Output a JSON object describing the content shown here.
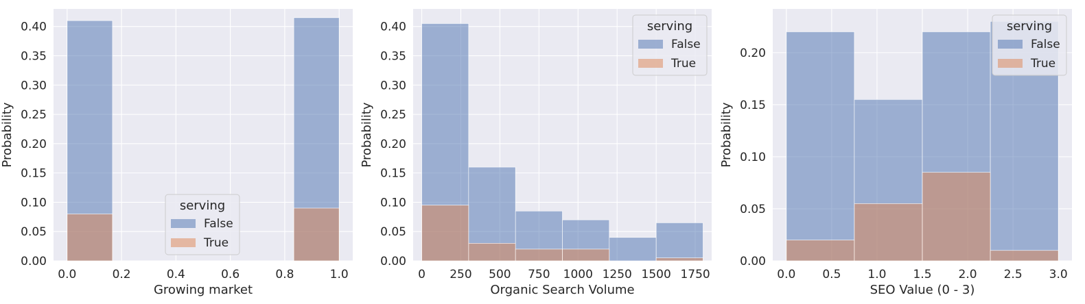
{
  "colors": {
    "panel_bg": "#EAEAF2",
    "grid": "#FFFFFF",
    "text": "#262626",
    "false_series": "#4C72B0",
    "true_series": "#DD8452",
    "legend_bg": "#EAEAF2",
    "legend_edge": "#CCCCCC"
  },
  "chart_data": [
    {
      "type": "bar",
      "xlabel": "Growing market",
      "ylabel": "Probability",
      "xlim": [
        -0.05,
        1.05
      ],
      "ylim": [
        0,
        0.43
      ],
      "xticks": [
        0.0,
        0.2,
        0.4,
        0.6,
        0.8,
        1.0
      ],
      "xtick_labels": [
        "0.0",
        "0.2",
        "0.4",
        "0.6",
        "0.8",
        "1.0"
      ],
      "yticks": [
        0.0,
        0.05,
        0.1,
        0.15,
        0.2,
        0.25,
        0.3,
        0.35,
        0.4
      ],
      "ytick_labels": [
        "0.00",
        "0.05",
        "0.10",
        "0.15",
        "0.20",
        "0.25",
        "0.30",
        "0.35",
        "0.40"
      ],
      "grid": true,
      "legend": {
        "title": "serving",
        "entries": [
          "False",
          "True"
        ],
        "placement": "lower center"
      },
      "bin_edges": [
        0.0,
        0.1667,
        0.3333,
        0.5,
        0.6667,
        0.8333,
        1.0
      ],
      "series": [
        {
          "name": "False",
          "values": [
            0.41,
            0,
            0,
            0,
            0,
            0.415
          ]
        },
        {
          "name": "True",
          "values": [
            0.08,
            0,
            0,
            0,
            0,
            0.09
          ]
        }
      ]
    },
    {
      "type": "bar",
      "xlabel": "Organic Search Volume",
      "ylabel": "Probability",
      "xlim": [
        -55,
        1855
      ],
      "ylim": [
        0,
        0.43
      ],
      "xticks": [
        0,
        250,
        500,
        750,
        1000,
        1250,
        1500,
        1750
      ],
      "xtick_labels": [
        "0",
        "250",
        "500",
        "750",
        "1000",
        "1250",
        "1500",
        "1750"
      ],
      "yticks": [
        0.0,
        0.05,
        0.1,
        0.15,
        0.2,
        0.25,
        0.3,
        0.35,
        0.4
      ],
      "ytick_labels": [
        "0.00",
        "0.05",
        "0.10",
        "0.15",
        "0.20",
        "0.25",
        "0.30",
        "0.35",
        "0.40"
      ],
      "grid": true,
      "legend": {
        "title": "serving",
        "entries": [
          "False",
          "True"
        ],
        "placement": "upper right"
      },
      "bin_edges": [
        0,
        300,
        600,
        900,
        1200,
        1500,
        1800
      ],
      "series": [
        {
          "name": "False",
          "values": [
            0.405,
            0.16,
            0.085,
            0.07,
            0.04,
            0.065
          ]
        },
        {
          "name": "True",
          "values": [
            0.095,
            0.03,
            0.02,
            0.02,
            0,
            0.005
          ]
        }
      ]
    },
    {
      "type": "bar",
      "xlabel": "SEO Value (0 - 3)",
      "ylabel": "Probability",
      "xlim": [
        -0.15,
        3.15
      ],
      "ylim": [
        0,
        0.242
      ],
      "xticks": [
        0.0,
        0.5,
        1.0,
        1.5,
        2.0,
        2.5,
        3.0
      ],
      "xtick_labels": [
        "0.0",
        "0.5",
        "1.0",
        "1.5",
        "2.0",
        "2.5",
        "3.0"
      ],
      "yticks": [
        0.0,
        0.05,
        0.1,
        0.15,
        0.2
      ],
      "ytick_labels": [
        "0.00",
        "0.05",
        "0.10",
        "0.15",
        "0.20"
      ],
      "grid": true,
      "legend": {
        "title": "serving",
        "entries": [
          "False",
          "True"
        ],
        "placement": "upper right"
      },
      "bin_edges": [
        0.0,
        0.75,
        1.5,
        2.25,
        3.0
      ],
      "series": [
        {
          "name": "False",
          "values": [
            0.22,
            0.155,
            0.22,
            0.23
          ]
        },
        {
          "name": "True",
          "values": [
            0.02,
            0.055,
            0.085,
            0.01
          ]
        }
      ]
    }
  ]
}
